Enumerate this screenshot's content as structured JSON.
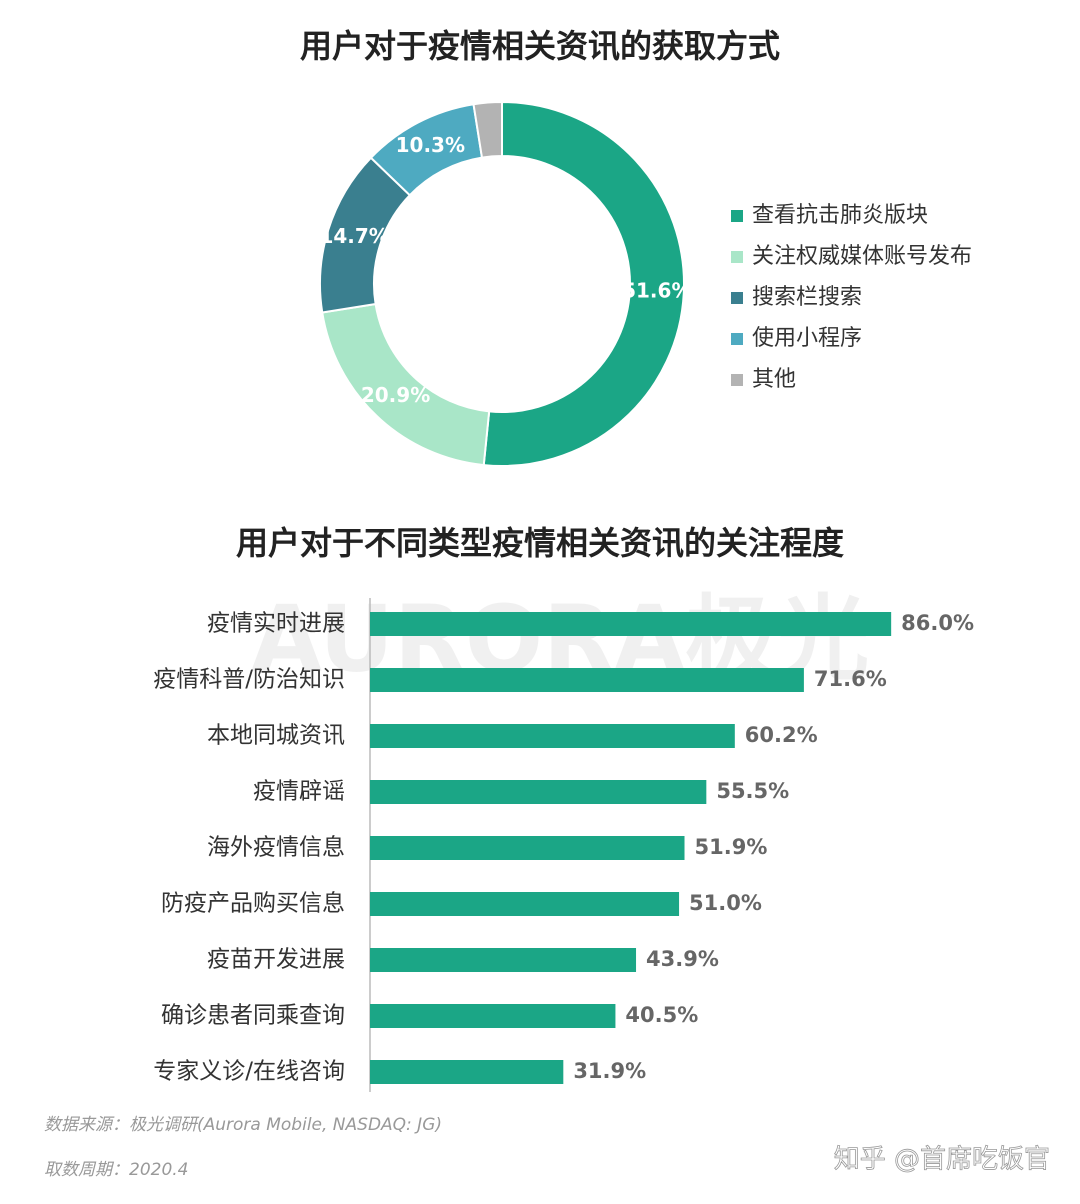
{
  "chart_data": [
    {
      "type": "pie",
      "title": "用户对于疫情相关资讯的获取方式",
      "categories": [
        "查看抗击肺炎版块",
        "关注权威媒体账号发布",
        "搜索栏搜索",
        "使用小程序",
        "其他"
      ],
      "values": [
        51.6,
        20.9,
        14.7,
        10.3,
        2.5
      ],
      "value_labels": [
        "51.6%",
        "20.9%",
        "14.7%",
        "10.3%",
        null
      ],
      "colors": [
        "#1ba686",
        "#a9e6c8",
        "#3a7f8f",
        "#4eaac1",
        "#b3b3b3"
      ],
      "donut": true,
      "legend": "right"
    },
    {
      "type": "barh",
      "title": "用户对于不同类型疫情相关资讯的关注程度",
      "categories": [
        "疫情实时进展",
        "疫情科普/防治知识",
        "本地同城资讯",
        "疫情辟谣",
        "海外疫情信息",
        "防疫产品购买信息",
        "疫苗开发进展",
        "确诊患者同乘查询",
        "专家义诊/在线咨询"
      ],
      "values": [
        86.0,
        71.6,
        60.2,
        55.5,
        51.9,
        51.0,
        43.9,
        40.5,
        31.9
      ],
      "value_labels": [
        "86.0%",
        "71.6%",
        "60.2%",
        "55.5%",
        "51.9%",
        "51.0%",
        "43.9%",
        "40.5%",
        "31.9%"
      ],
      "color": "#1ba686"
    }
  ],
  "footer": {
    "source": "数据来源：极光调研(Aurora Mobile, NASDAQ: JG)",
    "period": "取数周期：2020.4",
    "watermark": "知乎 @首席吃饭官"
  },
  "brand": "AURORA极光"
}
